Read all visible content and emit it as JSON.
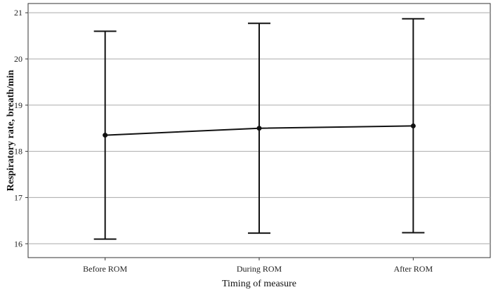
{
  "chart_data": {
    "type": "line",
    "title": "",
    "xlabel": "Timing of measure",
    "ylabel": "Respiratory rate, breath/min",
    "categories": [
      "Before ROM",
      "During ROM",
      "After ROM"
    ],
    "ylim": [
      15.7,
      21.2
    ],
    "yticks": [
      16,
      17,
      18,
      19,
      20,
      21
    ],
    "grid": true,
    "series": [
      {
        "values": [
          18.35,
          18.5,
          18.55
        ],
        "error_low": [
          16.1,
          16.23,
          16.24
        ],
        "error_high": [
          20.6,
          20.77,
          20.87
        ]
      }
    ],
    "colors": {
      "line": "#111111",
      "grid": "#aaaaaa",
      "frame": "#333333"
    }
  }
}
